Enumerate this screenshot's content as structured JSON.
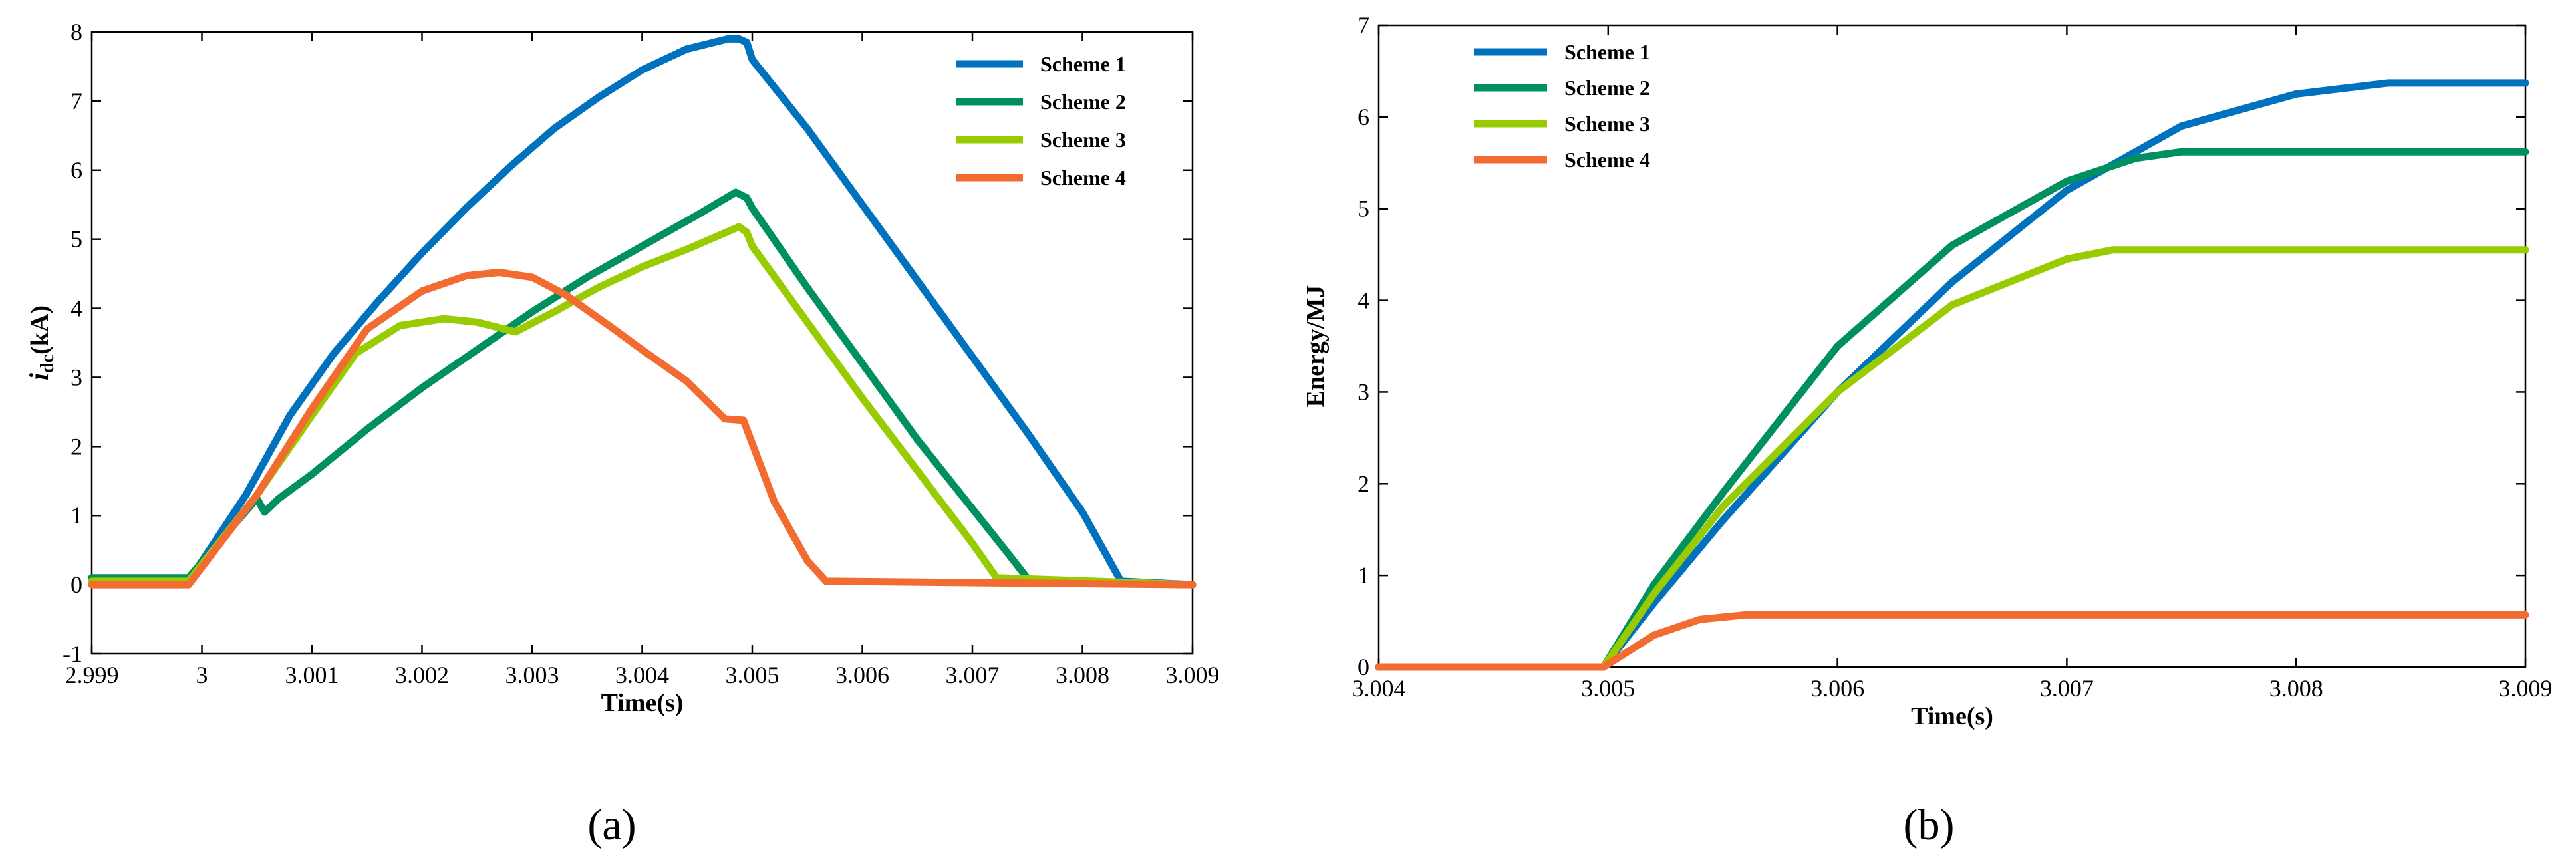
{
  "colors": {
    "scheme1": "#0072BD",
    "scheme2": "#009060",
    "scheme3": "#99CC00",
    "scheme4": "#F26B30"
  },
  "panel_labels": {
    "a": "(a)",
    "b": "(b)"
  },
  "chart_data": [
    {
      "id": "a",
      "type": "line",
      "title": "",
      "xlabel": "Time(s)",
      "ylabel": "i_dc(kA)",
      "ylabel_main": "i",
      "ylabel_sub": "dc",
      "ylabel_unit": "(kA)",
      "xlim": [
        2.999,
        3.009
      ],
      "ylim": [
        -1,
        8
      ],
      "xticks": [
        2.999,
        3,
        3.001,
        3.002,
        3.003,
        3.004,
        3.005,
        3.006,
        3.007,
        3.008,
        3.009
      ],
      "xtick_labels": [
        "2.999",
        "3",
        "3.001",
        "3.002",
        "3.003",
        "3.004",
        "3.005",
        "3.006",
        "3.007",
        "3.008",
        "3.009"
      ],
      "yticks": [
        -1,
        0,
        1,
        2,
        3,
        4,
        5,
        6,
        7,
        8
      ],
      "ytick_labels": [
        "-1",
        "0",
        "1",
        "2",
        "3",
        "4",
        "5",
        "6",
        "7",
        "8"
      ],
      "legend_position": "top-right",
      "series": [
        {
          "name": "Scheme 1",
          "color_key": "scheme1",
          "x": [
            2.999,
            2.99988,
            3.0004,
            3.0008,
            3.0012,
            3.0016,
            3.002,
            3.0024,
            3.0028,
            3.0032,
            3.0036,
            3.004,
            3.0044,
            3.00478,
            3.00488,
            3.00495,
            3.005,
            3.0055,
            3.006,
            3.0065,
            3.007,
            3.0075,
            3.008,
            3.00835,
            3.009
          ],
          "y": [
            0.05,
            0.05,
            1.3,
            2.45,
            3.35,
            4.1,
            4.8,
            5.45,
            6.05,
            6.6,
            7.05,
            7.45,
            7.75,
            7.9,
            7.9,
            7.85,
            7.6,
            6.6,
            5.5,
            4.4,
            3.3,
            2.2,
            1.05,
            0.05,
            0.0
          ]
        },
        {
          "name": "Scheme 2",
          "color_key": "scheme2",
          "x": [
            2.999,
            2.99988,
            3.0005,
            3.00057,
            3.0007,
            3.001,
            3.0015,
            3.002,
            3.0025,
            3.003,
            3.0035,
            3.004,
            3.0045,
            3.00485,
            3.00495,
            3.005,
            3.0055,
            3.006,
            3.0065,
            3.007,
            3.0073,
            3.00752,
            3.009
          ],
          "y": [
            0.1,
            0.1,
            1.25,
            1.05,
            1.25,
            1.6,
            2.25,
            2.85,
            3.4,
            3.95,
            4.45,
            4.9,
            5.35,
            5.68,
            5.6,
            5.45,
            4.3,
            3.2,
            2.1,
            1.1,
            0.5,
            0.05,
            0.0
          ]
        },
        {
          "name": "Scheme 3",
          "color_key": "scheme3",
          "x": [
            2.999,
            2.99988,
            3.0005,
            3.001,
            3.0014,
            3.0018,
            3.0022,
            3.0025,
            3.0028,
            3.00285,
            3.0032,
            3.0036,
            3.004,
            3.0044,
            3.00488,
            3.00495,
            3.005,
            3.0055,
            3.006,
            3.0065,
            3.007,
            3.00722,
            3.009
          ],
          "y": [
            0.05,
            0.05,
            1.3,
            2.45,
            3.35,
            3.75,
            3.85,
            3.8,
            3.68,
            3.66,
            3.95,
            4.3,
            4.6,
            4.85,
            5.18,
            5.1,
            4.9,
            3.8,
            2.7,
            1.65,
            0.6,
            0.1,
            0.0
          ]
        },
        {
          "name": "Scheme 4",
          "color_key": "scheme4",
          "x": [
            2.999,
            2.99988,
            3.0005,
            3.001,
            3.0015,
            3.002,
            3.0024,
            3.0027,
            3.003,
            3.0033,
            3.0037,
            3.004,
            3.0044,
            3.00475,
            3.00492,
            3.0052,
            3.0055,
            3.00567,
            3.009
          ],
          "y": [
            0.0,
            0.0,
            1.3,
            2.55,
            3.7,
            4.25,
            4.47,
            4.52,
            4.45,
            4.2,
            3.75,
            3.4,
            2.95,
            2.4,
            2.38,
            1.2,
            0.35,
            0.05,
            0.0
          ]
        }
      ]
    },
    {
      "id": "b",
      "type": "line",
      "title": "",
      "xlabel": "Time(s)",
      "ylabel": "Energy/MJ",
      "xlim": [
        3.004,
        3.009
      ],
      "ylim": [
        0,
        7
      ],
      "xticks": [
        3.004,
        3.005,
        3.006,
        3.007,
        3.008,
        3.009
      ],
      "xtick_labels": [
        "3.004",
        "3.005",
        "3.006",
        "3.007",
        "3.008",
        "3.009"
      ],
      "yticks": [
        0,
        1,
        2,
        3,
        4,
        5,
        6,
        7
      ],
      "ytick_labels": [
        "0",
        "1",
        "2",
        "3",
        "4",
        "5",
        "6",
        "7"
      ],
      "legend_position": "top-left",
      "series": [
        {
          "name": "Scheme 1",
          "color_key": "scheme1",
          "x": [
            3.004,
            3.00498,
            3.0052,
            3.0055,
            3.006,
            3.0065,
            3.007,
            3.0075,
            3.008,
            3.0084,
            3.009
          ],
          "y": [
            0.0,
            0.0,
            0.7,
            1.6,
            3.0,
            4.2,
            5.2,
            5.9,
            6.25,
            6.37,
            6.37
          ]
        },
        {
          "name": "Scheme 2",
          "color_key": "scheme2",
          "x": [
            3.004,
            3.00498,
            3.0052,
            3.0055,
            3.006,
            3.0065,
            3.007,
            3.0073,
            3.0075,
            3.009
          ],
          "y": [
            0.0,
            0.0,
            0.9,
            1.9,
            3.5,
            4.6,
            5.3,
            5.55,
            5.62,
            5.62
          ]
        },
        {
          "name": "Scheme 3",
          "color_key": "scheme3",
          "x": [
            3.004,
            3.00498,
            3.0052,
            3.0055,
            3.006,
            3.0065,
            3.007,
            3.0072,
            3.009
          ],
          "y": [
            0.0,
            0.0,
            0.8,
            1.75,
            3.0,
            3.95,
            4.45,
            4.55,
            4.55
          ]
        },
        {
          "name": "Scheme 4",
          "color_key": "scheme4",
          "x": [
            3.004,
            3.00498,
            3.0052,
            3.0054,
            3.0056,
            3.009
          ],
          "y": [
            0.0,
            0.0,
            0.35,
            0.52,
            0.57,
            0.57
          ]
        }
      ]
    }
  ]
}
